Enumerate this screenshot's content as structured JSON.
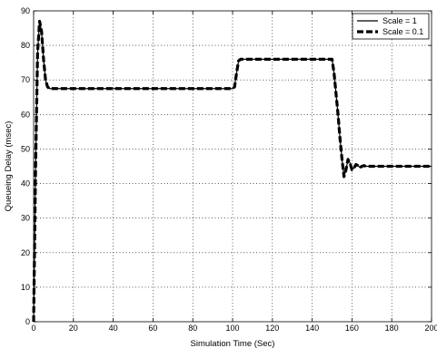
{
  "chart_data": {
    "type": "line",
    "title": "",
    "xlabel": "Simulation Time (Sec)",
    "ylabel": "Queueing Delay (msec)",
    "xlim": [
      0,
      200
    ],
    "ylim": [
      0,
      90
    ],
    "xticks": [
      0,
      20,
      40,
      60,
      80,
      100,
      120,
      140,
      160,
      180,
      200
    ],
    "yticks": [
      0,
      10,
      20,
      30,
      40,
      50,
      60,
      70,
      80,
      90
    ],
    "grid": true,
    "legend_position": "top-right",
    "series": [
      {
        "name": "Scale = 1",
        "style": "solid-thin",
        "color": "#000000",
        "x": [
          0,
          1,
          2,
          3,
          4,
          5,
          6,
          7,
          8,
          9,
          10,
          12,
          20,
          40,
          60,
          80,
          100,
          101,
          102,
          103,
          104,
          105,
          120,
          140,
          150,
          151,
          152,
          153,
          154,
          155,
          156,
          157,
          158,
          159,
          160,
          161,
          162,
          163,
          164,
          165,
          166,
          167,
          168,
          170,
          180,
          190,
          200
        ],
        "y": [
          0,
          45,
          78,
          87,
          84,
          76,
          70,
          68,
          67.5,
          67.5,
          67.5,
          67.5,
          67.5,
          67.5,
          67.5,
          67.5,
          67.5,
          68,
          72,
          75.5,
          76,
          76,
          76,
          76,
          76,
          72,
          66,
          60,
          53,
          47,
          42,
          44,
          47,
          46,
          44,
          44.5,
          45.5,
          45.2,
          44.6,
          45,
          45.2,
          45,
          45,
          45,
          45,
          45,
          45
        ]
      },
      {
        "name": "Scale = 0.1",
        "style": "dashed-thick",
        "color": "#000000",
        "x": [
          0,
          1,
          2,
          3,
          4,
          5,
          6,
          7,
          8,
          9,
          10,
          12,
          20,
          40,
          60,
          80,
          100,
          101,
          102,
          103,
          104,
          105,
          120,
          140,
          150,
          151,
          152,
          153,
          154,
          155,
          156,
          157,
          158,
          159,
          160,
          161,
          162,
          163,
          164,
          165,
          166,
          167,
          168,
          170,
          180,
          190,
          200
        ],
        "y": [
          0,
          45,
          78,
          87,
          84,
          76,
          70,
          68,
          67.5,
          67.5,
          67.5,
          67.5,
          67.5,
          67.5,
          67.5,
          67.5,
          67.5,
          68,
          72,
          75.5,
          76,
          76,
          76,
          76,
          76,
          72,
          66,
          60,
          53,
          47,
          42,
          44,
          47,
          46,
          44,
          44.5,
          45.5,
          45.2,
          44.6,
          45,
          45.2,
          45,
          45,
          45,
          45,
          45,
          45
        ]
      }
    ]
  }
}
